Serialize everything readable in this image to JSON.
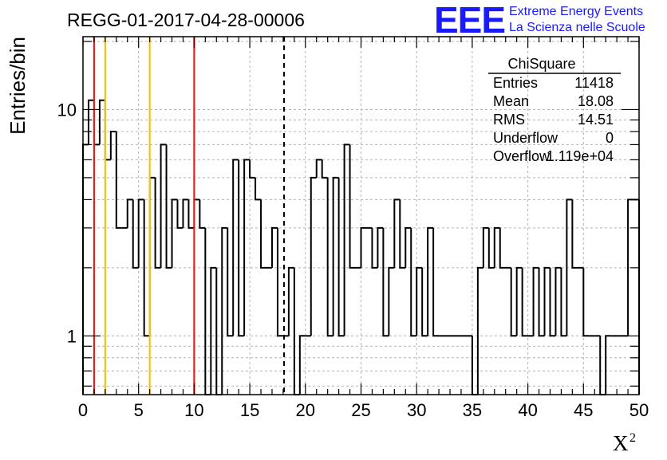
{
  "chart_data": {
    "type": "histogram",
    "title": "REGG-01-2017-04-28-00006",
    "xlabel": "X",
    "xlabel_superscript": "2",
    "ylabel": "Entries/bin",
    "xlim": [
      0,
      50
    ],
    "ylim": [
      0.55,
      21
    ],
    "yscale": "log",
    "grid": true,
    "x_ticks": [
      0,
      5,
      10,
      15,
      20,
      25,
      30,
      35,
      40,
      45,
      50
    ],
    "y_tick_labels": [
      {
        "value": 1,
        "label": "1"
      },
      {
        "value": 10,
        "label": "10"
      }
    ],
    "bin_width": 0.5,
    "bins": [
      {
        "x": 0.0,
        "y": 7
      },
      {
        "x": 0.5,
        "y": 11
      },
      {
        "x": 1.0,
        "y": 7
      },
      {
        "x": 1.5,
        "y": 11
      },
      {
        "x": 2.0,
        "y": 6
      },
      {
        "x": 2.5,
        "y": 8
      },
      {
        "x": 3.0,
        "y": 3
      },
      {
        "x": 3.5,
        "y": 3
      },
      {
        "x": 4.0,
        "y": 4
      },
      {
        "x": 4.5,
        "y": 2
      },
      {
        "x": 5.0,
        "y": 4
      },
      {
        "x": 5.5,
        "y": 1
      },
      {
        "x": 6.0,
        "y": 5
      },
      {
        "x": 6.5,
        "y": 2
      },
      {
        "x": 7.0,
        "y": 7
      },
      {
        "x": 7.5,
        "y": 2
      },
      {
        "x": 8.0,
        "y": 4
      },
      {
        "x": 8.5,
        "y": 3
      },
      {
        "x": 9.0,
        "y": 4
      },
      {
        "x": 9.5,
        "y": 3
      },
      {
        "x": 10.0,
        "y": 4
      },
      {
        "x": 10.5,
        "y": 3
      },
      {
        "x": 11.0,
        "y": 0
      },
      {
        "x": 11.5,
        "y": 2
      },
      {
        "x": 12.0,
        "y": 0
      },
      {
        "x": 12.5,
        "y": 3
      },
      {
        "x": 13.0,
        "y": 1
      },
      {
        "x": 13.5,
        "y": 6
      },
      {
        "x": 14.0,
        "y": 1
      },
      {
        "x": 14.5,
        "y": 6
      },
      {
        "x": 15.0,
        "y": 5
      },
      {
        "x": 15.5,
        "y": 4
      },
      {
        "x": 16.0,
        "y": 2
      },
      {
        "x": 16.5,
        "y": 2
      },
      {
        "x": 17.0,
        "y": 3
      },
      {
        "x": 17.5,
        "y": 1
      },
      {
        "x": 18.0,
        "y": 1
      },
      {
        "x": 18.5,
        "y": 2
      },
      {
        "x": 19.0,
        "y": 0
      },
      {
        "x": 19.5,
        "y": 1
      },
      {
        "x": 20.0,
        "y": 1
      },
      {
        "x": 20.5,
        "y": 5
      },
      {
        "x": 21.0,
        "y": 6
      },
      {
        "x": 21.5,
        "y": 5
      },
      {
        "x": 22.0,
        "y": 1
      },
      {
        "x": 22.5,
        "y": 5
      },
      {
        "x": 23.0,
        "y": 1
      },
      {
        "x": 23.5,
        "y": 7
      },
      {
        "x": 24.0,
        "y": 2
      },
      {
        "x": 24.5,
        "y": 2
      },
      {
        "x": 25.0,
        "y": 3
      },
      {
        "x": 25.5,
        "y": 3
      },
      {
        "x": 26.0,
        "y": 2
      },
      {
        "x": 26.5,
        "y": 3
      },
      {
        "x": 27.0,
        "y": 1
      },
      {
        "x": 27.5,
        "y": 2
      },
      {
        "x": 28.0,
        "y": 4
      },
      {
        "x": 28.5,
        "y": 2
      },
      {
        "x": 29.0,
        "y": 3
      },
      {
        "x": 29.5,
        "y": 1
      },
      {
        "x": 30.0,
        "y": 2
      },
      {
        "x": 30.5,
        "y": 1
      },
      {
        "x": 31.0,
        "y": 3
      },
      {
        "x": 31.5,
        "y": 1
      },
      {
        "x": 32.0,
        "y": 1
      },
      {
        "x": 32.5,
        "y": 1
      },
      {
        "x": 33.0,
        "y": 1
      },
      {
        "x": 33.5,
        "y": 1
      },
      {
        "x": 34.0,
        "y": 1
      },
      {
        "x": 34.5,
        "y": 1
      },
      {
        "x": 35.0,
        "y": 0
      },
      {
        "x": 35.5,
        "y": 2
      },
      {
        "x": 36.0,
        "y": 3
      },
      {
        "x": 36.5,
        "y": 2
      },
      {
        "x": 37.0,
        "y": 3
      },
      {
        "x": 37.5,
        "y": 2
      },
      {
        "x": 38.0,
        "y": 2
      },
      {
        "x": 38.5,
        "y": 1
      },
      {
        "x": 39.0,
        "y": 2
      },
      {
        "x": 39.5,
        "y": 1
      },
      {
        "x": 40.0,
        "y": 1
      },
      {
        "x": 40.5,
        "y": 2
      },
      {
        "x": 41.0,
        "y": 1
      },
      {
        "x": 41.5,
        "y": 2
      },
      {
        "x": 42.0,
        "y": 1
      },
      {
        "x": 42.5,
        "y": 2
      },
      {
        "x": 43.0,
        "y": 1
      },
      {
        "x": 43.5,
        "y": 4
      },
      {
        "x": 44.0,
        "y": 2
      },
      {
        "x": 44.5,
        "y": 2
      },
      {
        "x": 45.0,
        "y": 1
      },
      {
        "x": 45.5,
        "y": 1
      },
      {
        "x": 46.0,
        "y": 1
      },
      {
        "x": 46.5,
        "y": 0
      },
      {
        "x": 47.0,
        "y": 1
      },
      {
        "x": 47.5,
        "y": 1
      },
      {
        "x": 48.0,
        "y": 1
      },
      {
        "x": 48.5,
        "y": 1
      },
      {
        "x": 49.0,
        "y": 4
      },
      {
        "x": 49.5,
        "y": 4
      }
    ],
    "reference_lines": [
      {
        "x": 1,
        "color": "#e0211f",
        "style": "solid"
      },
      {
        "x": 2,
        "color": "#f2c21a",
        "style": "solid"
      },
      {
        "x": 6,
        "color": "#f2c21a",
        "style": "solid"
      },
      {
        "x": 10,
        "color": "#e0211f",
        "style": "solid"
      },
      {
        "x": 18.08,
        "color": "#000000",
        "style": "dashed"
      }
    ],
    "stats_box": {
      "title": "ChiSquare",
      "rows": [
        {
          "label": "Entries",
          "value": "11418"
        },
        {
          "label": "Mean",
          "value": "18.08"
        },
        {
          "label": "RMS",
          "value": "14.51"
        },
        {
          "label": "Underflow",
          "value": "0"
        },
        {
          "label": "Overflow",
          "value": "1.119e+04"
        }
      ]
    }
  },
  "logo": {
    "text": "EEE",
    "line1": "Extreme Energy Events",
    "line2": "La Scienza nelle Scuole",
    "color": "#1a1aff"
  }
}
